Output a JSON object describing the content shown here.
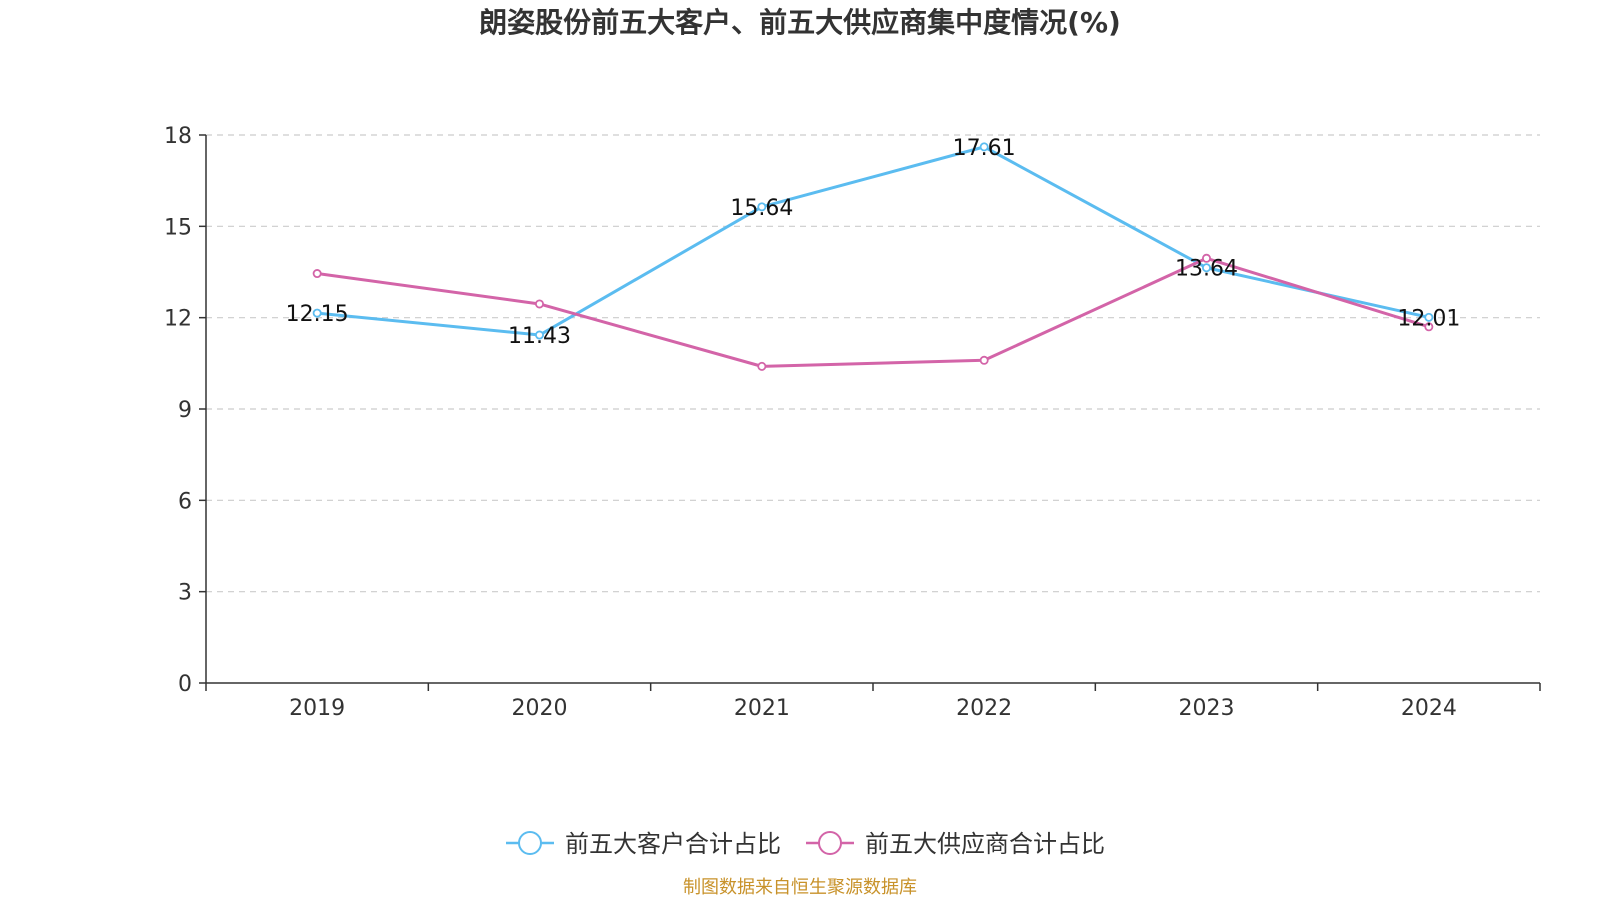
{
  "chart_data": {
    "type": "line",
    "title": "朗姿股份前五大客户、前五大供应商集中度情况(%)",
    "categories": [
      "2019",
      "2020",
      "2021",
      "2022",
      "2023",
      "2024"
    ],
    "series": [
      {
        "name": "前五大客户合计占比",
        "color": "#5bbcf0",
        "values": [
          12.15,
          11.43,
          15.64,
          17.61,
          13.64,
          12.01
        ],
        "labels": [
          "12.15",
          "11.43",
          "15.64",
          "17.61",
          "13.64",
          "12.01"
        ]
      },
      {
        "name": "前五大供应商合计占比",
        "color": "#d364a8",
        "values": [
          13.45,
          12.45,
          10.4,
          10.6,
          13.95,
          11.7
        ]
      }
    ],
    "ylim": [
      0,
      18
    ],
    "yticks": [
      0,
      3,
      6,
      9,
      12,
      15,
      18
    ],
    "grid": true,
    "legend": "bottom-center",
    "xlabel": "",
    "ylabel": ""
  },
  "footer": {
    "source": "制图数据来自恒生聚源数据库",
    "source_color": "#c8922a"
  }
}
